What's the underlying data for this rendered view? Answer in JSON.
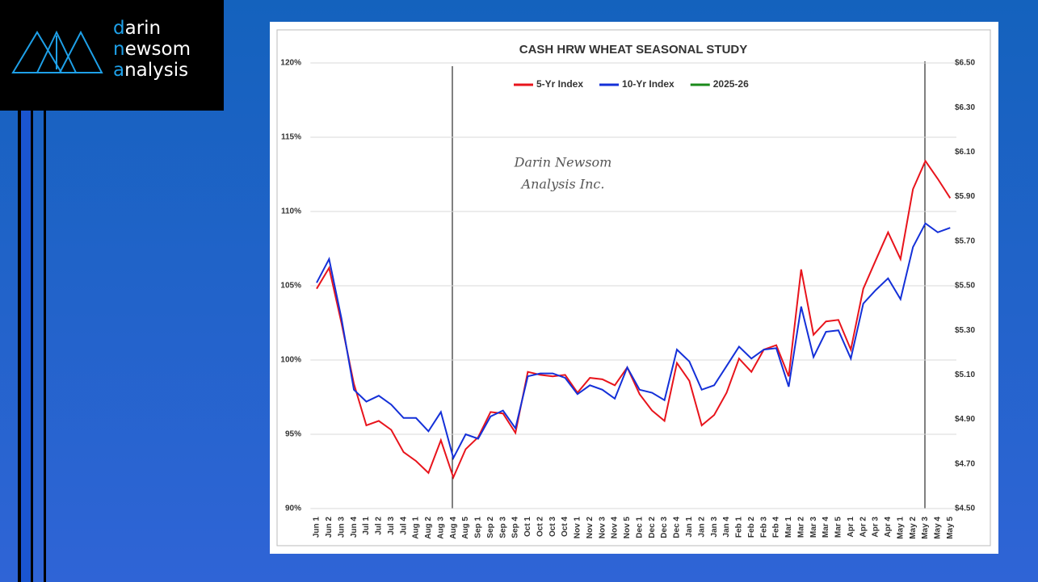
{
  "logo": [
    "darin",
    "newsom",
    "analysis"
  ],
  "chart_data": {
    "type": "line",
    "title": "CASH HRW WHEAT SEASONAL STUDY",
    "watermark": [
      "Darin Newsom",
      "Analysis Inc."
    ],
    "categories": [
      "Jun 1",
      "Jun 2",
      "Jun 3",
      "Jun 4",
      "Jul 1",
      "Jul 2",
      "Jul 3",
      "Jul 4",
      "Aug 1",
      "Aug 2",
      "Aug 3",
      "Aug 4",
      "Aug 5",
      "Sep 1",
      "Sep 2",
      "Sep 3",
      "Sep 4",
      "Oct 1",
      "Oct 2",
      "Oct 3",
      "Oct 4",
      "Nov 1",
      "Nov 2",
      "Nov 3",
      "Nov 4",
      "Nov 5",
      "Dec 1",
      "Dec 2",
      "Dec 3",
      "Dec 4",
      "Jan 1",
      "Jan 2",
      "Jan 3",
      "Jan 4",
      "Feb 1",
      "Feb 2",
      "Feb 3",
      "Feb 4",
      "Mar 1",
      "Mar 2",
      "Mar 3",
      "Mar 4",
      "Mar 5",
      "Apr 1",
      "Apr 2",
      "Apr 3",
      "Apr 4",
      "May 1",
      "May 2",
      "May 3",
      "May 4",
      "May 5"
    ],
    "series": [
      {
        "name": "5-Yr Index",
        "color": "#e8141c",
        "values": [
          104.8,
          106.2,
          102.5,
          98.4,
          95.6,
          95.9,
          95.3,
          93.8,
          93.2,
          92.4,
          94.6,
          92.1,
          94.0,
          94.8,
          96.5,
          96.4,
          95.1,
          99.2,
          99.0,
          98.9,
          99.0,
          97.8,
          98.8,
          98.7,
          98.3,
          99.5,
          97.7,
          96.6,
          95.9,
          99.8,
          98.6,
          95.6,
          96.3,
          97.8,
          100.1,
          99.2,
          100.7,
          101.0,
          98.9,
          106.1,
          101.7,
          102.6,
          102.7,
          100.7,
          104.8,
          106.7,
          108.6,
          106.8,
          111.5,
          113.4,
          112.2,
          110.9
        ]
      },
      {
        "name": "10-Yr Index",
        "color": "#1430d8",
        "values": [
          105.2,
          106.8,
          102.8,
          98.0,
          97.2,
          97.6,
          97.0,
          96.1,
          96.1,
          95.2,
          96.5,
          93.4,
          95.0,
          94.7,
          96.2,
          96.6,
          95.4,
          98.9,
          99.1,
          99.1,
          98.8,
          97.7,
          98.3,
          98.0,
          97.4,
          99.5,
          98.0,
          97.8,
          97.3,
          100.7,
          99.9,
          98.0,
          98.3,
          99.6,
          100.9,
          100.1,
          100.7,
          100.8,
          98.2,
          103.6,
          100.2,
          101.9,
          102.0,
          100.1,
          103.8,
          104.7,
          105.5,
          104.1,
          107.6,
          109.2,
          108.6,
          108.9
        ]
      },
      {
        "name": "2025-26",
        "color": "#1a8a1a",
        "axis": "y2",
        "values": [
          null,
          null,
          null,
          null,
          null,
          null,
          null,
          null,
          null,
          null,
          null,
          null,
          null,
          null,
          null,
          null,
          null,
          null,
          null,
          null,
          null,
          null,
          null,
          null,
          null,
          null,
          null,
          null,
          null,
          null,
          null,
          null,
          null,
          null,
          null,
          null,
          null,
          null,
          null,
          null,
          null,
          null,
          null,
          null,
          null,
          null,
          null,
          null,
          null,
          null,
          null,
          null
        ]
      }
    ],
    "ylim": [
      90,
      120
    ],
    "yticks": [
      {
        "value": 90,
        "label": "90%"
      },
      {
        "value": 95,
        "label": "95%"
      },
      {
        "value": 100,
        "label": "100%"
      },
      {
        "value": 105,
        "label": "105%"
      },
      {
        "value": 110,
        "label": "110%"
      },
      {
        "value": 115,
        "label": "115%"
      },
      {
        "value": 120,
        "label": "120%"
      }
    ],
    "y2lim": [
      4.5,
      6.5
    ],
    "y2ticks": [
      {
        "value": 4.5,
        "label": "$4.50"
      },
      {
        "value": 4.7,
        "label": "$4.70"
      },
      {
        "value": 4.9,
        "label": "$4.90"
      },
      {
        "value": 5.1,
        "label": "$5.10"
      },
      {
        "value": 5.3,
        "label": "$5.30"
      },
      {
        "value": 5.5,
        "label": "$5.50"
      },
      {
        "value": 5.7,
        "label": "$5.70"
      },
      {
        "value": 5.9,
        "label": "$5.90"
      },
      {
        "value": 6.1,
        "label": "$6.10"
      },
      {
        "value": 6.3,
        "label": "$6.30"
      },
      {
        "value": 6.5,
        "label": "$6.50"
      }
    ],
    "grid": true,
    "legend": "top"
  }
}
